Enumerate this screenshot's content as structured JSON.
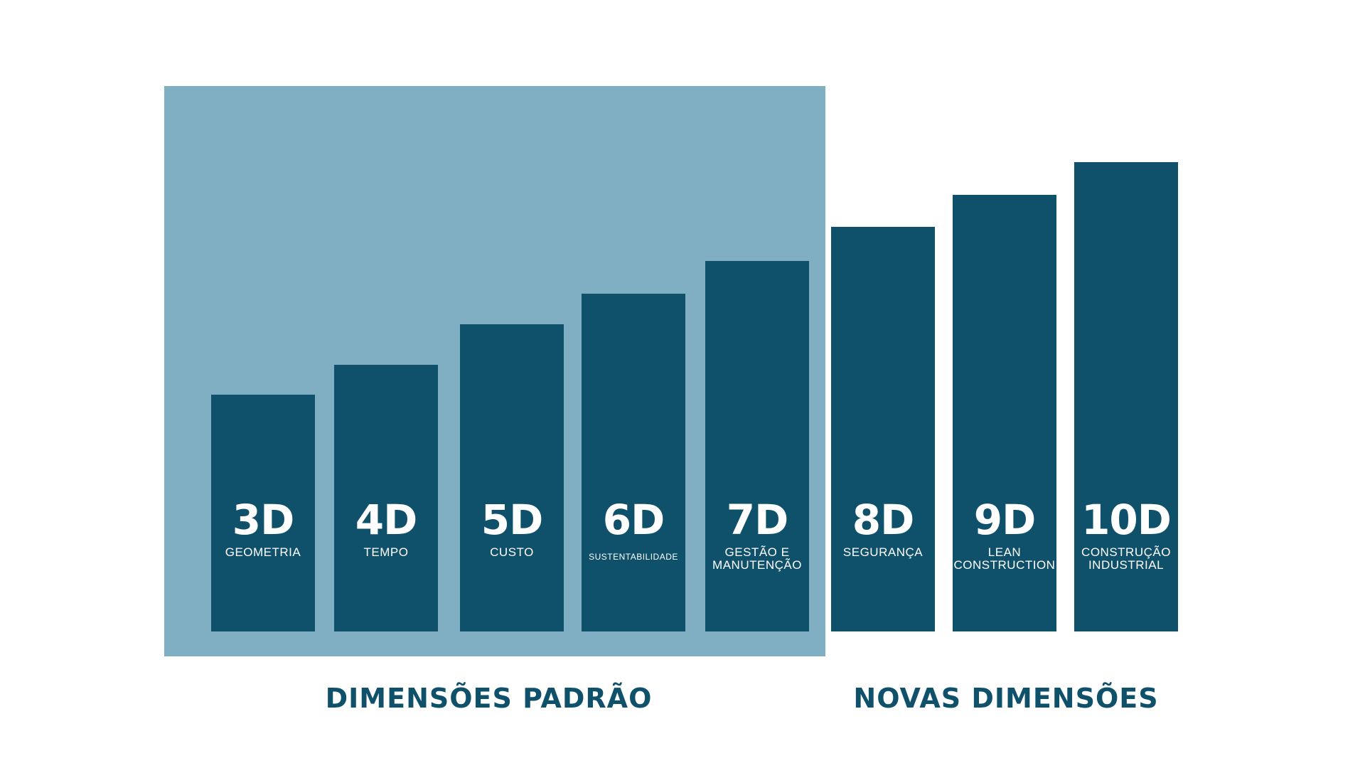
{
  "colors": {
    "highlight": "#80aec3",
    "bar": "#0f516b",
    "group_label": "#0f516b",
    "bar_text": "#ffffff"
  },
  "bars": [
    {
      "code": "3D",
      "label": "GEOMETRIA"
    },
    {
      "code": "4D",
      "label": "TEMPO"
    },
    {
      "code": "5D",
      "label": "CUSTO"
    },
    {
      "code": "6D",
      "label": "SUSTENTABILIDADE"
    },
    {
      "code": "7D",
      "label": "GESTÃO E\nMANUTENÇÃO"
    },
    {
      "code": "8D",
      "label": "SEGURANÇA"
    },
    {
      "code": "9D",
      "label": "LEAN\nCONSTRUCTION"
    },
    {
      "code": "10D",
      "label": "CONSTRUÇÃO\nINDUSTRIAL"
    }
  ],
  "groups": {
    "standard": "DIMENSÕES PADRÃO",
    "new": "NOVAS DIMENSÕES"
  }
}
